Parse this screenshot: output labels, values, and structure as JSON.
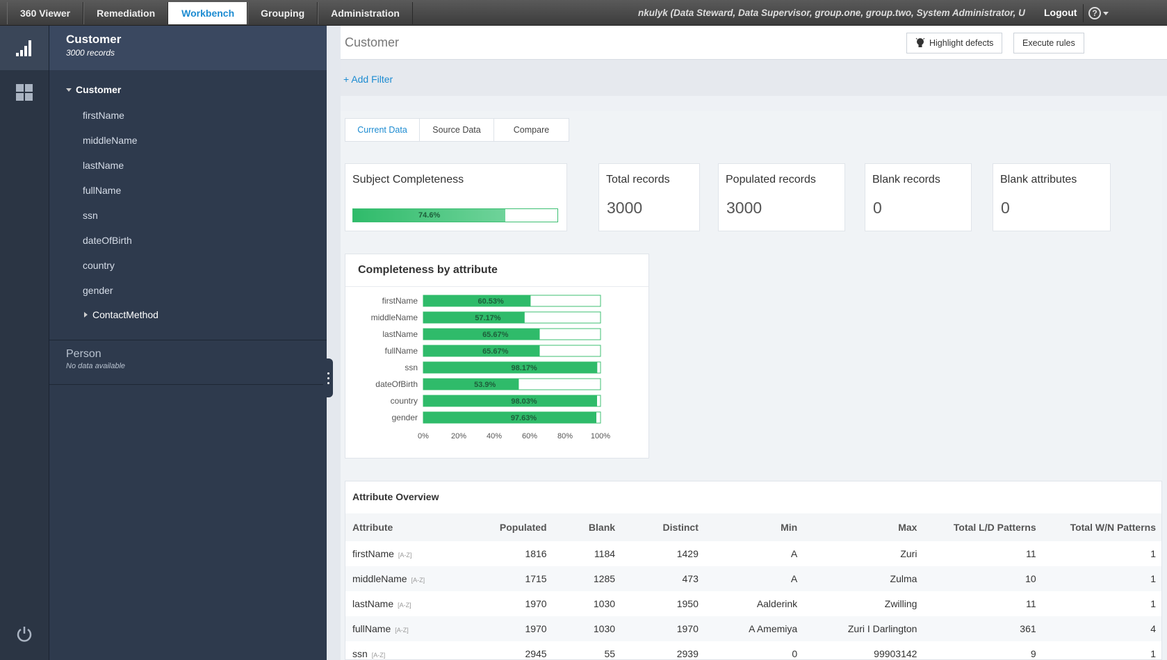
{
  "nav": {
    "tabs": [
      "360 Viewer",
      "Remediation",
      "Workbench",
      "Grouping",
      "Administration"
    ],
    "active": "Workbench"
  },
  "user": {
    "info": "nkulyk (Data Steward, Data Supervisor, group.one, group.two, System Administrator, U",
    "logout": "Logout"
  },
  "tree": {
    "entity": {
      "title": "Customer",
      "subtitle": "3000 records"
    },
    "root": "Customer",
    "items": [
      "firstName",
      "middleName",
      "lastName",
      "fullName",
      "ssn",
      "dateOfBirth",
      "country",
      "gender"
    ],
    "sub": "ContactMethod",
    "person": {
      "title": "Person",
      "subtitle": "No data available"
    }
  },
  "header": {
    "title": "Customer",
    "highlight": "Highlight defects",
    "execute": "Execute rules"
  },
  "filter": {
    "add": "Add Filter"
  },
  "subtabs": [
    "Current Data",
    "Source Data",
    "Compare"
  ],
  "stats": {
    "completeness": {
      "title": "Subject Completeness",
      "value": 74.6,
      "label": "74.6%"
    },
    "total": {
      "title": "Total records",
      "value": "3000"
    },
    "populated": {
      "title": "Populated records",
      "value": "3000"
    },
    "blank": {
      "title": "Blank records",
      "value": "0"
    },
    "blank_attrs": {
      "title": "Blank attributes",
      "value": "0"
    }
  },
  "colors": {
    "accent": "#1c8bd1",
    "bar": "#2fbb6a"
  },
  "chart_data": {
    "type": "bar",
    "title": "Completeness by attribute",
    "categories": [
      "firstName",
      "middleName",
      "lastName",
      "fullName",
      "ssn",
      "dateOfBirth",
      "country",
      "gender"
    ],
    "values": [
      60.53,
      57.17,
      65.67,
      65.67,
      98.17,
      53.9,
      98.03,
      97.63
    ],
    "labels": [
      "60.53%",
      "57.17%",
      "65.67%",
      "65.67%",
      "98.17%",
      "53.9%",
      "98.03%",
      "97.63%"
    ],
    "ticks": [
      "0%",
      "20%",
      "40%",
      "60%",
      "80%",
      "100%"
    ],
    "xlim": [
      0,
      100
    ]
  },
  "table": {
    "title": "Attribute Overview",
    "columns": [
      "Attribute",
      "Populated",
      "Blank",
      "Distinct",
      "Min",
      "Max",
      "Total L/D Patterns",
      "Total W/N Patterns"
    ],
    "az_tag": "[A-Z]",
    "rows": [
      [
        "firstName",
        "1816",
        "1184",
        "1429",
        "A",
        "Zuri",
        "11",
        "1"
      ],
      [
        "middleName",
        "1715",
        "1285",
        "473",
        "A",
        "Zulma",
        "10",
        "1"
      ],
      [
        "lastName",
        "1970",
        "1030",
        "1950",
        "Aalderink",
        "Zwilling",
        "11",
        "1"
      ],
      [
        "fullName",
        "1970",
        "1030",
        "1970",
        "A Amemiya",
        "Zuri I Darlington",
        "361",
        "4"
      ],
      [
        "ssn",
        "2945",
        "55",
        "2939",
        "0",
        "99903142",
        "9",
        "1"
      ]
    ]
  }
}
